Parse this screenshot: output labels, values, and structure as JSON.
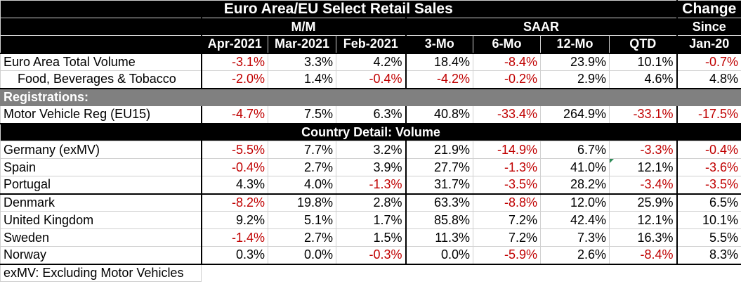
{
  "title": "Euro Area/EU Select Retail Sales",
  "change_header": {
    "line1": "Change",
    "line2": "Since",
    "line3": "Jan-20"
  },
  "group_headers": {
    "mm": "M/M",
    "saar": "SAAR"
  },
  "columns": [
    "Apr-2021",
    "Mar-2021",
    "Feb-2021",
    "3-Mo",
    "6-Mo",
    "12-Mo",
    "QTD"
  ],
  "rows": {
    "euro_total": {
      "label": "Euro Area Total Volume",
      "values": [
        "-3.1%",
        "3.3%",
        "4.2%",
        "18.4%",
        "-8.4%",
        "23.9%",
        "10.1%",
        "-0.7%"
      ]
    },
    "food": {
      "label": "Food, Beverages & Tobacco",
      "values": [
        "-2.0%",
        "1.4%",
        "-0.4%",
        "-4.2%",
        "-0.2%",
        "2.9%",
        "4.6%",
        "4.8%"
      ]
    },
    "registrations": {
      "label": "Registrations:"
    },
    "motor": {
      "label": "Motor Vehicle Reg (EU15)",
      "values": [
        "-4.7%",
        "7.5%",
        "6.3%",
        "40.8%",
        "-33.4%",
        "264.9%",
        "-33.1%",
        "-17.5%"
      ]
    },
    "country_detail": {
      "label": "Country Detail: Volume"
    },
    "germany": {
      "label": "Germany (exMV)",
      "values": [
        "-5.5%",
        "7.7%",
        "3.2%",
        "21.9%",
        "-14.9%",
        "6.7%",
        "-3.3%",
        "-0.4%"
      ]
    },
    "spain": {
      "label": "Spain",
      "values": [
        "-0.4%",
        "2.7%",
        "3.9%",
        "27.7%",
        "-1.3%",
        "41.0%",
        "12.1%",
        "-3.6%"
      ]
    },
    "portugal": {
      "label": "Portugal",
      "values": [
        "4.3%",
        "4.0%",
        "-1.3%",
        "31.7%",
        "-3.5%",
        "28.2%",
        "-3.4%",
        "-3.5%"
      ]
    },
    "denmark": {
      "label": "Denmark",
      "values": [
        "-8.2%",
        "19.8%",
        "2.8%",
        "63.3%",
        "-8.8%",
        "12.0%",
        "25.9%",
        "6.5%"
      ]
    },
    "uk": {
      "label": "United Kingdom",
      "values": [
        "9.2%",
        "5.1%",
        "1.7%",
        "85.8%",
        "7.2%",
        "42.4%",
        "12.1%",
        "10.1%"
      ]
    },
    "sweden": {
      "label": "Sweden",
      "values": [
        "-1.4%",
        "2.7%",
        "1.5%",
        "11.3%",
        "7.2%",
        "7.3%",
        "16.3%",
        "5.5%"
      ]
    },
    "norway": {
      "label": "Norway",
      "values": [
        "0.3%",
        "0.0%",
        "-0.3%",
        "0.0%",
        "-5.9%",
        "2.6%",
        "-8.4%",
        "8.3%"
      ]
    }
  },
  "footnote": "exMV: Excluding Motor Vehicles",
  "colors": {
    "negative": "#c00000",
    "header_bg": "#000000",
    "section_bg": "#808080"
  }
}
